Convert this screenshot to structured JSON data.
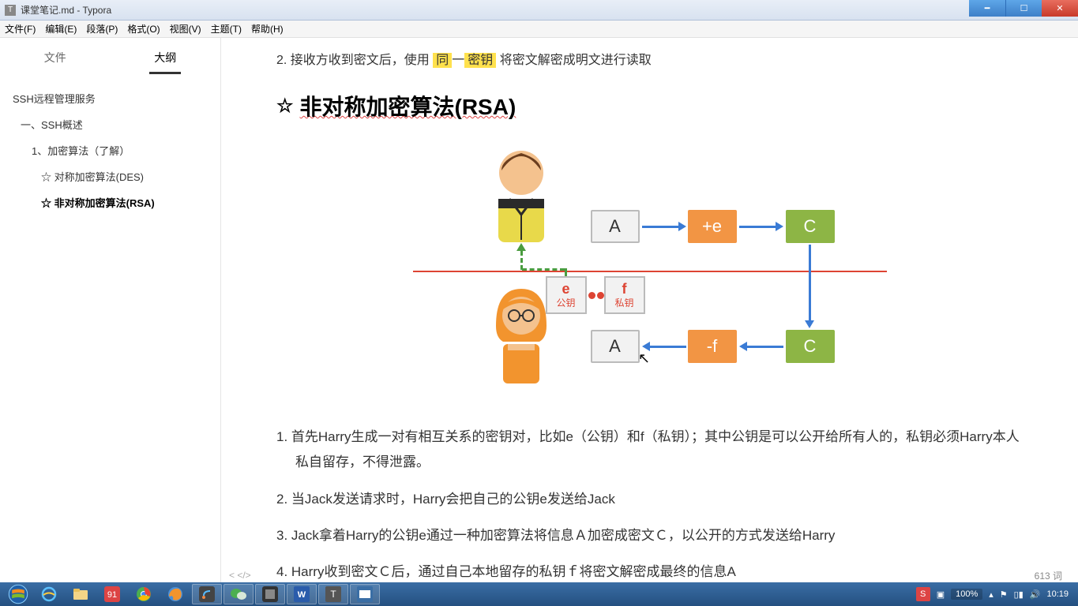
{
  "window": {
    "title": "课堂笔记.md - Typora",
    "icon_letter": "T"
  },
  "menu": {
    "file": "文件(F)",
    "edit": "编辑(E)",
    "para": "段落(P)",
    "format": "格式(O)",
    "view": "视图(V)",
    "theme": "主题(T)",
    "help": "帮助(H)"
  },
  "sidebar": {
    "tab_file": "文件",
    "tab_outline": "大纲",
    "items": [
      {
        "label": "SSH远程管理服务",
        "level": "l1"
      },
      {
        "label": "一、SSH概述",
        "level": "l2"
      },
      {
        "label": "1、加密算法（了解）",
        "level": "l3"
      },
      {
        "label": "☆ 对称加密算法(DES)",
        "level": "l4"
      },
      {
        "label": "☆ 非对称加密算法(RSA)",
        "level": "l4",
        "active": true
      }
    ]
  },
  "content": {
    "partial_prefix": "2.  接收方收到密文后，使用",
    "partial_hl1": "同",
    "partial_mid": "一",
    "partial_hl2": "密钥",
    "partial_suffix": "将密文解密成明文进行读取",
    "heading_star": "☆",
    "heading_text": "非对称加密算法(RSA)",
    "diagram": {
      "box_a": "A",
      "box_plus_e": "+e",
      "box_c": "C",
      "box_a2": "A",
      "box_minus_f": "-f",
      "box_c2": "C",
      "key_e_letter": "e",
      "key_e_label": "公钥",
      "key_f_letter": "f",
      "key_f_label": "私钥",
      "colors": {
        "orange": "#f29544",
        "green": "#8db545",
        "grey": "#f2f2f2",
        "blue": "#3a7bd5",
        "red": "#d43",
        "darrow": "#4a9c3f"
      }
    },
    "steps": [
      "首先Harry生成一对有相互关系的密钥对，比如e（公钥）和f（私钥）；其中公钥是可以公开给所有人的，私钥必须Harry本人私自留存，不得泄露。",
      "当Jack发送请求时，Harry会把自己的公钥e发送给Jack",
      "Jack拿着Harry的公钥e通过一种加密算法将信息Ａ加密成密文Ｃ，以公开的方式发送给Harry",
      "Harry收到密文Ｃ后，通过自己本地留存的私钥ｆ将密文解密成最终的信息A"
    ]
  },
  "status": {
    "words": "613 词",
    "source_nav": "<  </>"
  },
  "taskbar": {
    "zoom": "100%",
    "time": "10:19",
    "s_icon": "S"
  }
}
